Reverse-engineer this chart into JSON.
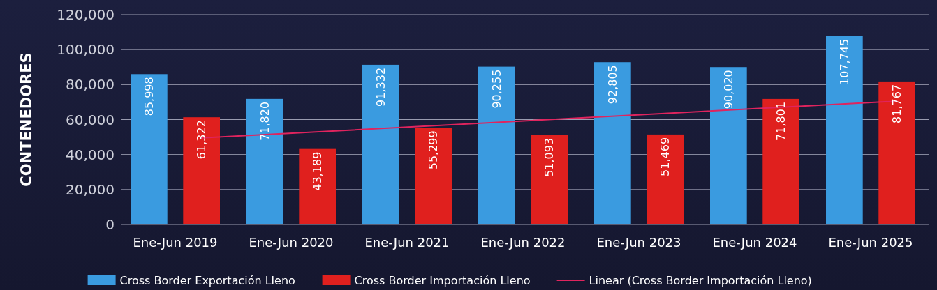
{
  "chart_data": {
    "type": "bar",
    "ylabel": "CONTENEDORES",
    "categories": [
      "Ene-Jun 2019",
      "Ene-Jun 2020",
      "Ene-Jun 2021",
      "Ene-Jun 2022",
      "Ene-Jun 2023",
      "Ene-Jun 2024",
      "Ene-Jun 2025"
    ],
    "series": [
      {
        "name": "Cross Border Exportación Lleno",
        "color": "#3a9be0",
        "values": [
          85998,
          71820,
          91332,
          90255,
          92805,
          90020,
          107745
        ],
        "value_labels": [
          "85,998",
          "71,820",
          "91,332",
          "90,255",
          "92,805",
          "90,020",
          "107,745"
        ]
      },
      {
        "name": "Cross Border Importación Lleno",
        "color": "#e0201e",
        "values": [
          61322,
          43189,
          55299,
          51093,
          51469,
          71801,
          81767
        ],
        "value_labels": [
          "61,322",
          "43,189",
          "55,299",
          "51,093",
          "51,469",
          "71,801",
          "81,767"
        ]
      },
      {
        "name": "Linear (Cross Border Importación Lleno)",
        "type": "line",
        "color": "#e0245e",
        "x": [
          "Ene-Jun 2019",
          "Ene-Jun 2025"
        ],
        "values": [
          49500,
          70500
        ]
      }
    ],
    "ylim": [
      0,
      120000
    ],
    "yticks": [
      {
        "value": 0,
        "label": "0"
      },
      {
        "value": 20000,
        "label": "20,000"
      },
      {
        "value": 40000,
        "label": "40,000"
      },
      {
        "value": 60000,
        "label": "60,000"
      },
      {
        "value": 80000,
        "label": "80,000"
      },
      {
        "value": 100000,
        "label": "100,000"
      },
      {
        "value": 120000,
        "label": "120,000"
      }
    ],
    "grid": "y",
    "legend": "bottom"
  }
}
